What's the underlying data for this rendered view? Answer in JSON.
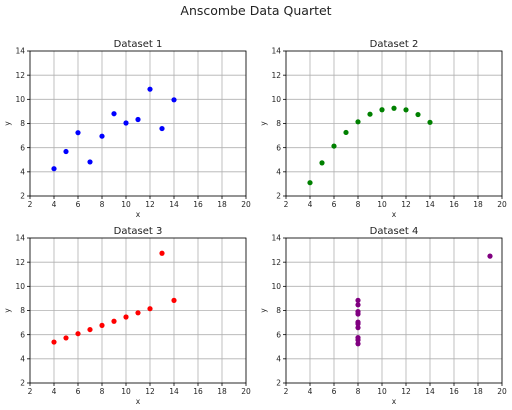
{
  "figure": {
    "title": "Anscombe Data Quartet"
  },
  "chart_data": [
    {
      "type": "scatter",
      "title": "Dataset 1",
      "xlabel": "x",
      "ylabel": "y",
      "xlim": [
        2,
        20
      ],
      "ylim": [
        2,
        14
      ],
      "xticks": [
        2,
        4,
        6,
        8,
        10,
        12,
        14,
        16,
        18,
        20
      ],
      "yticks": [
        2,
        4,
        6,
        8,
        10,
        12,
        14
      ],
      "grid": true,
      "color": "#0000ff",
      "points": [
        [
          10,
          8.04
        ],
        [
          8,
          6.95
        ],
        [
          13,
          7.58
        ],
        [
          9,
          8.81
        ],
        [
          11,
          8.33
        ],
        [
          14,
          9.96
        ],
        [
          6,
          7.24
        ],
        [
          4,
          4.26
        ],
        [
          12,
          10.84
        ],
        [
          7,
          4.82
        ],
        [
          5,
          5.68
        ]
      ]
    },
    {
      "type": "scatter",
      "title": "Dataset 2",
      "xlabel": "x",
      "ylabel": "y",
      "xlim": [
        2,
        20
      ],
      "ylim": [
        2,
        14
      ],
      "xticks": [
        2,
        4,
        6,
        8,
        10,
        12,
        14,
        16,
        18,
        20
      ],
      "yticks": [
        2,
        4,
        6,
        8,
        10,
        12,
        14
      ],
      "grid": true,
      "color": "#008000",
      "points": [
        [
          10,
          9.14
        ],
        [
          8,
          8.14
        ],
        [
          13,
          8.74
        ],
        [
          9,
          8.77
        ],
        [
          11,
          9.26
        ],
        [
          14,
          8.1
        ],
        [
          6,
          6.13
        ],
        [
          4,
          3.1
        ],
        [
          12,
          9.13
        ],
        [
          7,
          7.26
        ],
        [
          5,
          4.74
        ]
      ]
    },
    {
      "type": "scatter",
      "title": "Dataset 3",
      "xlabel": "x",
      "ylabel": "y",
      "xlim": [
        2,
        20
      ],
      "ylim": [
        2,
        14
      ],
      "xticks": [
        2,
        4,
        6,
        8,
        10,
        12,
        14,
        16,
        18,
        20
      ],
      "yticks": [
        2,
        4,
        6,
        8,
        10,
        12,
        14
      ],
      "grid": true,
      "color": "#ff0000",
      "points": [
        [
          10,
          7.46
        ],
        [
          8,
          6.77
        ],
        [
          13,
          12.74
        ],
        [
          9,
          7.11
        ],
        [
          11,
          7.81
        ],
        [
          14,
          8.84
        ],
        [
          6,
          6.08
        ],
        [
          4,
          5.39
        ],
        [
          12,
          8.15
        ],
        [
          7,
          6.42
        ],
        [
          5,
          5.73
        ]
      ]
    },
    {
      "type": "scatter",
      "title": "Dataset 4",
      "xlabel": "x",
      "ylabel": "y",
      "xlim": [
        2,
        20
      ],
      "ylim": [
        2,
        14
      ],
      "xticks": [
        2,
        4,
        6,
        8,
        10,
        12,
        14,
        16,
        18,
        20
      ],
      "yticks": [
        2,
        4,
        6,
        8,
        10,
        12,
        14
      ],
      "grid": true,
      "color": "#800080",
      "points": [
        [
          8,
          6.58
        ],
        [
          8,
          5.76
        ],
        [
          8,
          7.71
        ],
        [
          8,
          8.84
        ],
        [
          8,
          8.47
        ],
        [
          8,
          7.04
        ],
        [
          8,
          5.25
        ],
        [
          19,
          12.5
        ],
        [
          8,
          5.56
        ],
        [
          8,
          7.91
        ],
        [
          8,
          6.89
        ]
      ]
    }
  ]
}
